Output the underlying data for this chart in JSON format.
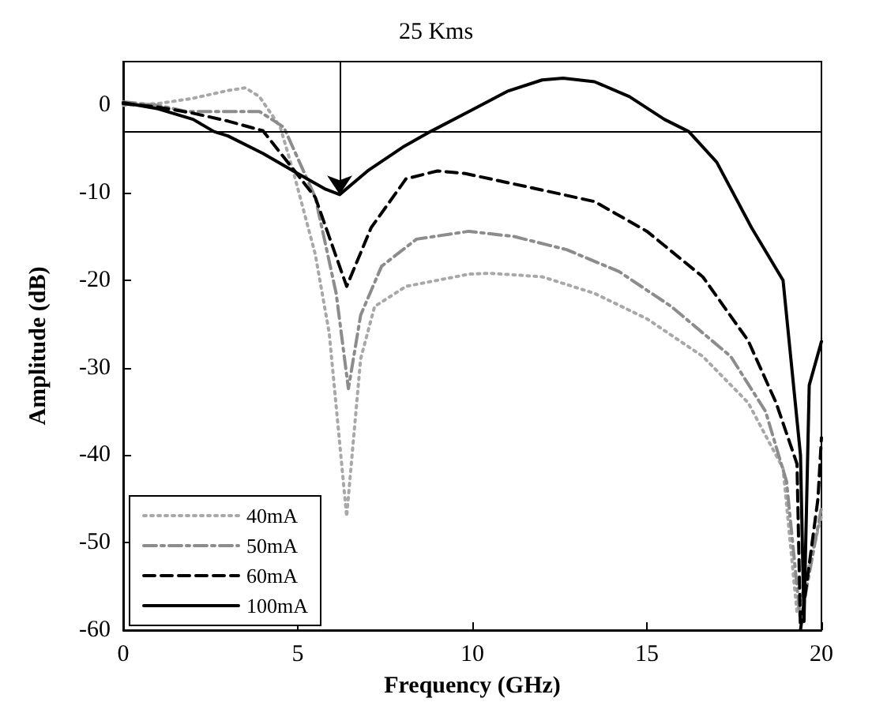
{
  "chart_data": {
    "type": "line",
    "title": "25 Kms",
    "xlabel": "Frequency (GHz)",
    "ylabel": "Amplitude (dB)",
    "xlim": [
      0,
      20
    ],
    "xticks": [
      0,
      5,
      10,
      15,
      20
    ],
    "ylim": [
      -60,
      5
    ],
    "yticks": [
      -60,
      -50,
      -40,
      -30,
      -20,
      -10,
      0
    ],
    "grid": false,
    "legend": "bottom left",
    "marker": "none",
    "ref_lines": [
      {
        "axis": "y",
        "value": -3,
        "color": "#000000"
      }
    ],
    "series": [
      {
        "name": "40mA",
        "color": "#a8a8a8",
        "line_style": "dotted",
        "x": [
          0,
          1,
          2,
          3,
          3.5,
          3.9,
          4.5,
          4.9,
          5.5,
          5.9,
          6.4,
          6.8,
          7.2,
          8.1,
          9.9,
          10.5,
          12,
          13.5,
          15,
          16.6,
          17.9,
          18.9,
          19.3,
          20
        ],
        "values": [
          0,
          0.2,
          0.8,
          1.7,
          2,
          1,
          -2.5,
          -8,
          -17,
          -26,
          -47,
          -29,
          -23,
          -20.7,
          -19.3,
          -19.2,
          -19.6,
          -21.5,
          -24.4,
          -28.7,
          -34,
          -41.5,
          -58,
          -47
        ]
      },
      {
        "name": "50mA",
        "color": "#8c8c8c",
        "line_style": "dashdot",
        "x": [
          0,
          1,
          1.8,
          3.9,
          4.6,
          5.5,
          6.1,
          6.45,
          6.8,
          7.4,
          8.4,
          9.9,
          11.2,
          12.7,
          14.2,
          15.7,
          17.4,
          18.4,
          19,
          19.4,
          20
        ],
        "values": [
          0.4,
          0,
          -0.7,
          -0.7,
          -2.5,
          -10.5,
          -21.5,
          -32.4,
          -24,
          -18.4,
          -15.3,
          -14.4,
          -15,
          -16.5,
          -19,
          -23,
          -28.7,
          -35,
          -43,
          -59,
          -46
        ]
      },
      {
        "name": "60mA",
        "color": "#000000",
        "line_style": "dashed",
        "x": [
          0,
          1,
          2,
          3,
          4,
          5.5,
          6.4,
          7.1,
          8.1,
          9,
          9.8,
          11.9,
          13.5,
          15,
          16.6,
          17.9,
          18.7,
          19.3,
          19.4,
          19.9,
          20
        ],
        "values": [
          0.2,
          -0.2,
          -0.9,
          -1.8,
          -2.9,
          -10.5,
          -20.7,
          -14,
          -8.4,
          -7.5,
          -7.8,
          -9.6,
          -11,
          -14.4,
          -19.6,
          -26.9,
          -34,
          -41,
          -60,
          -45,
          -38
        ]
      },
      {
        "name": "100mA",
        "color": "#000000",
        "line_style": "solid",
        "x": [
          0,
          1,
          2,
          2.6,
          3,
          4,
          5,
          5.8,
          6.2,
          7,
          8,
          8.8,
          10,
          11,
          12,
          12.6,
          13.5,
          14.5,
          15.5,
          16.2,
          17,
          18,
          18.9,
          19.4,
          19.5,
          19.65,
          20
        ],
        "values": [
          0.3,
          -0.4,
          -1.6,
          -3,
          -3.5,
          -5.5,
          -7.8,
          -9.6,
          -10.2,
          -7.5,
          -4.8,
          -3,
          -0.5,
          1.6,
          2.9,
          3.1,
          2.7,
          1,
          -1.6,
          -3,
          -6.5,
          -14,
          -20,
          -40,
          -59,
          -32,
          -27
        ]
      }
    ]
  }
}
